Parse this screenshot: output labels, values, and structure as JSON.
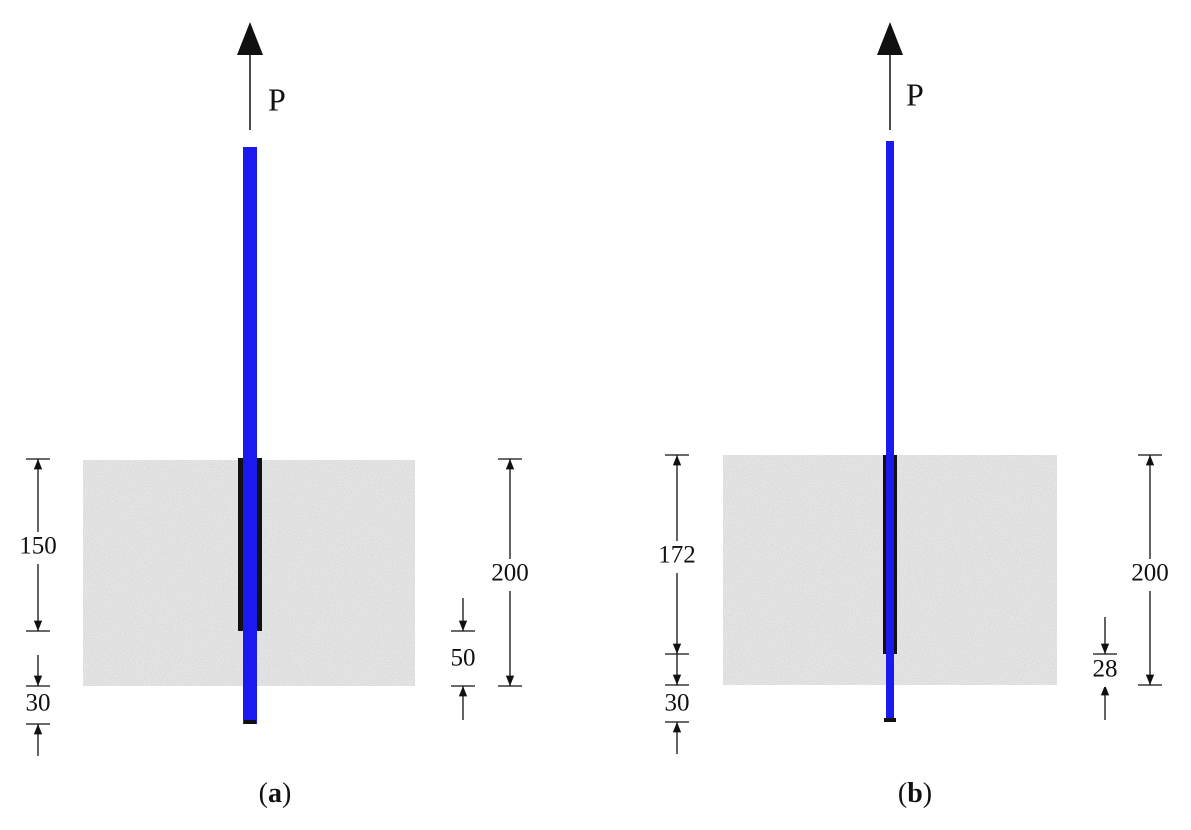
{
  "panels": [
    {
      "load_label": "P",
      "dimensions": [
        "150",
        "30",
        "200",
        "50"
      ],
      "caption": {
        "open": "(",
        "letter": "a",
        "close": ")"
      }
    },
    {
      "load_label": "P",
      "dimensions": [
        "172",
        "30",
        "200",
        "28"
      ],
      "caption": {
        "open": "(",
        "letter": "b",
        "close": ")"
      }
    }
  ]
}
